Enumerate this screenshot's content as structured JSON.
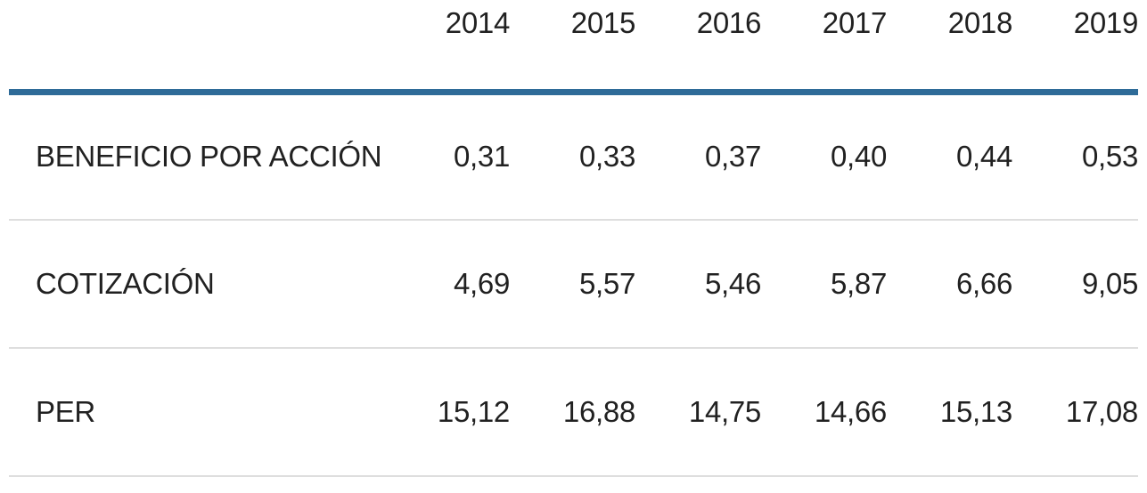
{
  "colors": {
    "accent_rule": "#2e6b98",
    "divider": "#dedede",
    "text": "#212121",
    "background": "#ffffff"
  },
  "table": {
    "corner_label": "",
    "columns": [
      "2014",
      "2015",
      "2016",
      "2017",
      "2018",
      "2019"
    ],
    "rows": [
      {
        "label": "BENEFICIO POR ACCIÓN",
        "values": [
          "0,31",
          "0,33",
          "0,37",
          "0,40",
          "0,44",
          "0,53"
        ]
      },
      {
        "label": "COTIZACIÓN",
        "values": [
          "4,69",
          "5,57",
          "5,46",
          "5,87",
          "6,66",
          "9,05"
        ]
      },
      {
        "label": "PER",
        "values": [
          "15,12",
          "16,88",
          "14,75",
          "14,66",
          "15,13",
          "17,08"
        ]
      }
    ]
  },
  "chart_data": {
    "type": "table",
    "categories": [
      "2014",
      "2015",
      "2016",
      "2017",
      "2018",
      "2019"
    ],
    "series": [
      {
        "name": "BENEFICIO POR ACCIÓN",
        "values": [
          0.31,
          0.33,
          0.37,
          0.4,
          0.44,
          0.53
        ]
      },
      {
        "name": "COTIZACIÓN",
        "values": [
          4.69,
          5.57,
          5.46,
          5.87,
          6.66,
          9.05
        ]
      },
      {
        "name": "PER",
        "values": [
          15.12,
          16.88,
          14.75,
          14.66,
          15.13,
          17.08
        ]
      }
    ],
    "title": "",
    "xlabel": "",
    "ylabel": "",
    "number_format": "comma-decimal",
    "legend_position": "none",
    "grid": "horizontal-dividers"
  }
}
